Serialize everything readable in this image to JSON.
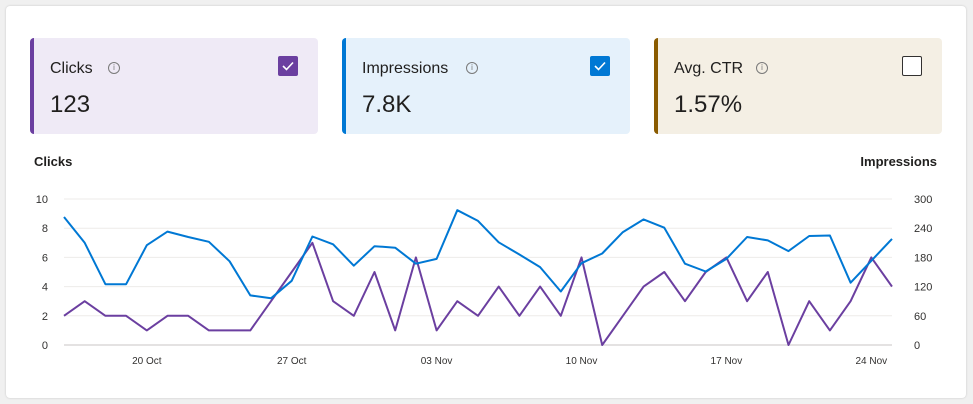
{
  "cards": [
    {
      "label": "Clicks",
      "value": "123",
      "checked": true,
      "bg": "#efeaf6",
      "accent": "#6b3fa0"
    },
    {
      "label": "Impressions",
      "value": "7.8K",
      "checked": true,
      "bg": "#e5f1fb",
      "accent": "#0078d4"
    },
    {
      "label": "Avg. CTR",
      "value": "1.57%",
      "checked": false,
      "bg": "#f4efe4",
      "accent": "#8a5b00"
    }
  ],
  "chart_data": {
    "type": "line",
    "x_tick_labels": [
      "20 Oct",
      "27 Oct",
      "03 Nov",
      "10 Nov",
      "17 Nov",
      "24 Nov"
    ],
    "y_left": {
      "label": "Clicks",
      "ticks": [
        0,
        2,
        4,
        6,
        8,
        10
      ],
      "lim": [
        0,
        10
      ]
    },
    "y_right": {
      "label": "Impressions",
      "ticks": [
        0,
        60,
        120,
        180,
        240,
        300
      ],
      "lim": [
        0,
        300
      ]
    },
    "grid": true,
    "series": [
      {
        "axis": "left",
        "color": "#6b3fa0",
        "values": [
          2,
          3,
          2,
          2,
          1,
          2,
          2,
          1,
          1,
          1,
          3,
          5,
          7,
          3,
          2,
          5,
          1,
          6,
          1,
          3,
          2,
          4,
          2,
          4,
          2,
          6,
          0,
          2,
          4,
          5,
          3,
          5,
          6,
          3,
          5,
          0,
          3,
          1,
          3,
          6,
          4
        ]
      },
      {
        "axis": "right",
        "color": "#0078d4",
        "values": [
          263,
          210,
          125,
          125,
          205,
          233,
          222,
          212,
          172,
          102,
          96,
          132,
          223,
          207,
          163,
          203,
          200,
          167,
          177,
          277,
          255,
          211,
          186,
          160,
          110,
          168,
          188,
          232,
          258,
          241,
          167,
          151,
          177,
          222,
          215,
          193,
          224,
          225,
          128,
          173,
          218
        ]
      }
    ]
  }
}
